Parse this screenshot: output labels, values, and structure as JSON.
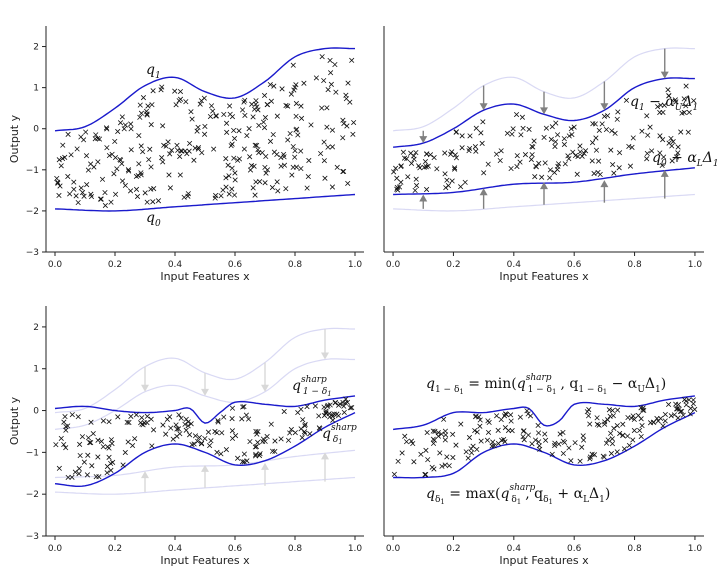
{
  "chart_data": [
    {
      "panel": "top-left",
      "type": "scatter",
      "xlabel": "Input Features x",
      "ylabel": "Output y",
      "xlim": [
        -0.03,
        1.03
      ],
      "ylim": [
        -3,
        2.5
      ],
      "xticks": [
        0.0,
        0.2,
        0.4,
        0.6,
        0.8,
        1.0
      ],
      "xtick_labels": [
        "0.0",
        "0.2",
        "0.4",
        "0.6",
        "0.8",
        "1.0"
      ],
      "yticks": [
        -3,
        -2,
        -1,
        0,
        1,
        2
      ],
      "ytick_labels": [
        "−3",
        "−2",
        "−1",
        "0",
        "1",
        "2"
      ],
      "series": [
        {
          "name": "q1",
          "role": "upper",
          "x": [
            0.0,
            0.1,
            0.2,
            0.3,
            0.4,
            0.5,
            0.6,
            0.7,
            0.8,
            0.9,
            1.0
          ],
          "values": [
            -0.05,
            0.05,
            0.5,
            1.05,
            1.25,
            0.9,
            0.75,
            1.15,
            1.75,
            1.95,
            1.95
          ]
        },
        {
          "name": "q0",
          "role": "lower",
          "x": [
            0.0,
            0.2,
            0.4,
            0.6,
            0.8,
            1.0
          ],
          "values": [
            -1.95,
            -2.0,
            -1.9,
            -1.8,
            -1.7,
            -1.6
          ]
        }
      ],
      "annotations": [
        {
          "base": "q",
          "sub": "1",
          "x": 0.3,
          "y": 1.4
        },
        {
          "base": "q",
          "sub": "0",
          "x": 0.3,
          "y": -2.25
        }
      ]
    },
    {
      "panel": "top-right",
      "type": "scatter",
      "xlabel": "Input Features x",
      "ylabel": "",
      "xlim": [
        -0.03,
        1.03
      ],
      "ylim": [
        -3,
        2.5
      ],
      "xticks": [
        0.0,
        0.2,
        0.4,
        0.6,
        0.8,
        1.0
      ],
      "xtick_labels": [
        "0.0",
        "0.2",
        "0.4",
        "0.6",
        "0.8",
        "1.0"
      ],
      "yticks": [],
      "series": [
        {
          "name": "q1 faded",
          "role": "faded",
          "x": [
            0.0,
            0.1,
            0.2,
            0.3,
            0.4,
            0.5,
            0.6,
            0.7,
            0.8,
            0.9,
            1.0
          ],
          "values": [
            -0.05,
            0.05,
            0.5,
            1.05,
            1.25,
            0.9,
            0.75,
            1.15,
            1.75,
            1.95,
            1.95
          ]
        },
        {
          "name": "q0 faded",
          "role": "faded",
          "x": [
            0.0,
            0.2,
            0.4,
            0.6,
            0.8,
            1.0
          ],
          "values": [
            -1.95,
            -2.0,
            -1.9,
            -1.8,
            -1.7,
            -1.6
          ]
        },
        {
          "name": "q1 - alpha_U Delta_1",
          "role": "upper",
          "x": [
            0.0,
            0.1,
            0.2,
            0.3,
            0.4,
            0.5,
            0.6,
            0.7,
            0.8,
            0.9,
            1.0
          ],
          "values": [
            -0.45,
            -0.35,
            0.0,
            0.45,
            0.6,
            0.35,
            0.2,
            0.45,
            1.0,
            1.22,
            1.22
          ]
        },
        {
          "name": "q0 + alpha_L Delta_1",
          "role": "lower",
          "x": [
            0.0,
            0.2,
            0.4,
            0.6,
            0.8,
            1.0
          ],
          "values": [
            -1.6,
            -1.55,
            -1.35,
            -1.3,
            -1.1,
            -0.95
          ]
        }
      ],
      "arrows": [
        {
          "x": 0.1,
          "from": -0.05,
          "to": -0.35
        },
        {
          "x": 0.3,
          "from": 1.05,
          "to": 0.45
        },
        {
          "x": 0.5,
          "from": 0.9,
          "to": 0.35
        },
        {
          "x": 0.7,
          "from": 1.15,
          "to": 0.45
        },
        {
          "x": 0.9,
          "from": 1.95,
          "to": 1.22
        },
        {
          "x": 0.1,
          "from": -1.95,
          "to": -1.6
        },
        {
          "x": 0.3,
          "from": -1.95,
          "to": -1.45
        },
        {
          "x": 0.5,
          "from": -1.85,
          "to": -1.3
        },
        {
          "x": 0.7,
          "from": -1.8,
          "to": -1.25
        },
        {
          "x": 0.9,
          "from": -1.7,
          "to": -1.0
        }
      ],
      "annotations": [
        {
          "text": "q₁ − α_UΔ₁",
          "x": 0.8,
          "y": 0.65
        },
        {
          "text": "q₀ + α_LΔ₁",
          "x": 0.86,
          "y": -0.7
        }
      ]
    },
    {
      "panel": "bottom-left",
      "type": "scatter",
      "xlabel": "Input Features x",
      "ylabel": "Output y",
      "xlim": [
        -0.03,
        1.03
      ],
      "ylim": [
        -3,
        2.5
      ],
      "xticks": [
        0.0,
        0.2,
        0.4,
        0.6,
        0.8,
        1.0
      ],
      "xtick_labels": [
        "0.0",
        "0.2",
        "0.4",
        "0.6",
        "0.8",
        "1.0"
      ],
      "yticks": [
        -3,
        -2,
        -1,
        0,
        1,
        2
      ],
      "ytick_labels": [
        "−3",
        "−2",
        "−1",
        "0",
        "1",
        "2"
      ],
      "series": [
        {
          "name": "q1 faded",
          "role": "faded",
          "x": [
            0.0,
            0.1,
            0.2,
            0.3,
            0.4,
            0.5,
            0.6,
            0.7,
            0.8,
            0.9,
            1.0
          ],
          "values": [
            -0.05,
            0.05,
            0.5,
            1.05,
            1.25,
            0.9,
            0.75,
            1.15,
            1.75,
            1.95,
            1.95
          ]
        },
        {
          "name": "q1 - alpha_U Delta_1 faded",
          "role": "faded",
          "x": [
            0.0,
            0.1,
            0.2,
            0.3,
            0.4,
            0.5,
            0.6,
            0.7,
            0.8,
            0.9,
            1.0
          ],
          "values": [
            -0.45,
            -0.35,
            0.0,
            0.45,
            0.6,
            0.35,
            0.2,
            0.45,
            1.0,
            1.22,
            1.22
          ]
        },
        {
          "name": "q0 faded",
          "role": "faded",
          "x": [
            0.0,
            0.2,
            0.4,
            0.6,
            0.8,
            1.0
          ],
          "values": [
            -1.95,
            -2.0,
            -1.9,
            -1.8,
            -1.7,
            -1.6
          ]
        },
        {
          "name": "q0 + alpha_L Delta_1 faded",
          "role": "faded",
          "x": [
            0.0,
            0.2,
            0.4,
            0.6,
            0.8,
            1.0
          ],
          "values": [
            -1.6,
            -1.55,
            -1.35,
            -1.3,
            -1.1,
            -0.95
          ]
        },
        {
          "name": "q^sharp_{1-delta_1}",
          "role": "upper",
          "x": [
            0.0,
            0.1,
            0.2,
            0.3,
            0.4,
            0.45,
            0.5,
            0.55,
            0.6,
            0.7,
            0.8,
            0.9,
            1.0
          ],
          "values": [
            0.05,
            0.1,
            0.0,
            -0.05,
            0.0,
            0.05,
            -0.3,
            -0.05,
            0.2,
            0.15,
            0.1,
            0.25,
            0.35
          ]
        },
        {
          "name": "q^sharp_{delta_1}",
          "role": "lower",
          "x": [
            0.0,
            0.1,
            0.2,
            0.3,
            0.4,
            0.5,
            0.6,
            0.7,
            0.8,
            0.9,
            1.0
          ],
          "values": [
            -1.75,
            -1.8,
            -1.5,
            -1.0,
            -0.8,
            -1.0,
            -1.3,
            -1.2,
            -0.85,
            -0.4,
            -0.05
          ]
        }
      ],
      "arrows": [
        {
          "x": 0.3,
          "from": 1.05,
          "to": 0.45,
          "faded": true
        },
        {
          "x": 0.5,
          "from": 0.9,
          "to": 0.35,
          "faded": true
        },
        {
          "x": 0.7,
          "from": 1.15,
          "to": 0.45,
          "faded": true
        },
        {
          "x": 0.9,
          "from": 1.95,
          "to": 1.22,
          "faded": true
        },
        {
          "x": 0.3,
          "from": -1.95,
          "to": -1.45,
          "faded": true
        },
        {
          "x": 0.5,
          "from": -1.85,
          "to": -1.3,
          "faded": true
        },
        {
          "x": 0.7,
          "from": -1.8,
          "to": -1.25,
          "faded": true
        },
        {
          "x": 0.9,
          "from": -1.7,
          "to": -1.0,
          "faded": true
        }
      ],
      "annotations": [
        {
          "base": "q",
          "sup": "sharp",
          "sub": "1 − δ₁",
          "x": 0.8,
          "y": 0.45
        },
        {
          "base": "q",
          "sup": "sharp",
          "sub": "δ₁",
          "x": 0.89,
          "y": -0.75
        }
      ]
    },
    {
      "panel": "bottom-right",
      "type": "scatter",
      "xlabel": "Input Features x",
      "ylabel": "",
      "xlim": [
        -0.03,
        1.03
      ],
      "ylim": [
        -3,
        2.5
      ],
      "xticks": [
        0.0,
        0.2,
        0.4,
        0.6,
        0.8,
        1.0
      ],
      "xtick_labels": [
        "0.0",
        "0.2",
        "0.4",
        "0.6",
        "0.8",
        "1.0"
      ],
      "yticks": [],
      "series": [
        {
          "name": "q_{1-delta_1}",
          "role": "upper",
          "x": [
            0.0,
            0.1,
            0.2,
            0.3,
            0.4,
            0.45,
            0.5,
            0.55,
            0.6,
            0.7,
            0.8,
            0.9,
            1.0
          ],
          "values": [
            -0.45,
            -0.35,
            -0.05,
            -0.05,
            0.05,
            0.05,
            -0.35,
            -0.25,
            0.15,
            0.15,
            0.1,
            0.25,
            0.35
          ]
        },
        {
          "name": "q_{delta_1}",
          "role": "lower",
          "x": [
            0.0,
            0.1,
            0.2,
            0.3,
            0.4,
            0.5,
            0.6,
            0.7,
            0.8,
            0.9,
            1.0
          ],
          "values": [
            -1.6,
            -1.6,
            -1.5,
            -1.0,
            -0.8,
            -1.0,
            -1.3,
            -1.2,
            -0.85,
            -0.4,
            -0.05
          ]
        }
      ],
      "annotations": [
        {
          "text": "q₁₋δ₁ = min(q^sharp₁₋δ₁, q₁₋δ₁ − α_UΔ₁)",
          "x": 0.09,
          "y": 0.6
        },
        {
          "text": "qδ₁ = max(q^sharpδ₁, qδ₁ + α_LΔ₁)",
          "x": 0.09,
          "y": -2.0
        }
      ]
    }
  ],
  "labels": {
    "tl_q1": "q",
    "tl_q1_sub": "1",
    "tl_q0": "q",
    "tl_q0_sub": "0",
    "tr_upper_q": "q",
    "tr_upper_sub": "1",
    "tr_upper_rest": " − α",
    "tr_upper_U": "U",
    "tr_upper_delta": "Δ",
    "tr_upper_delta_sub": "1",
    "tr_lower_q": "q",
    "tr_lower_sub": "0",
    "tr_lower_rest": " + α",
    "tr_lower_L": "L",
    "tr_lower_delta": "Δ",
    "tr_lower_delta_sub": "1",
    "bl_upper_q": "q",
    "bl_upper_sup": "sharp",
    "bl_upper_sub": "1 − δ",
    "bl_lower_q": "q",
    "bl_lower_sup": "sharp",
    "bl_lower_sub": "δ",
    "br_top_lhs": "q",
    "br_top_lhs_sub": "1 − δ",
    "br_top_eq": " = min(",
    "br_top_q2": "q",
    "br_top_q2_sup": "sharp",
    "br_top_q2_sub": "1 − δ",
    "br_top_mid": ", q",
    "br_top_q3_sub": "1 − δ",
    "br_top_tail": " − α",
    "br_top_U": "U",
    "br_top_delta": "Δ",
    "br_top_delta_sub": "1",
    "br_top_close": ")",
    "br_bot_lhs": "q",
    "br_bot_lhs_sub": "δ",
    "br_bot_eq": " = max(",
    "br_bot_q2": "q",
    "br_bot_q2_sup": "sharp",
    "br_bot_q2_sub": "δ",
    "br_bot_mid": ", q",
    "br_bot_q3_sub": "δ",
    "br_bot_tail": " + α",
    "br_bot_L": "L",
    "br_bot_delta": "Δ",
    "br_bot_delta_sub": "1",
    "br_bot_close": ")",
    "one": "1"
  }
}
